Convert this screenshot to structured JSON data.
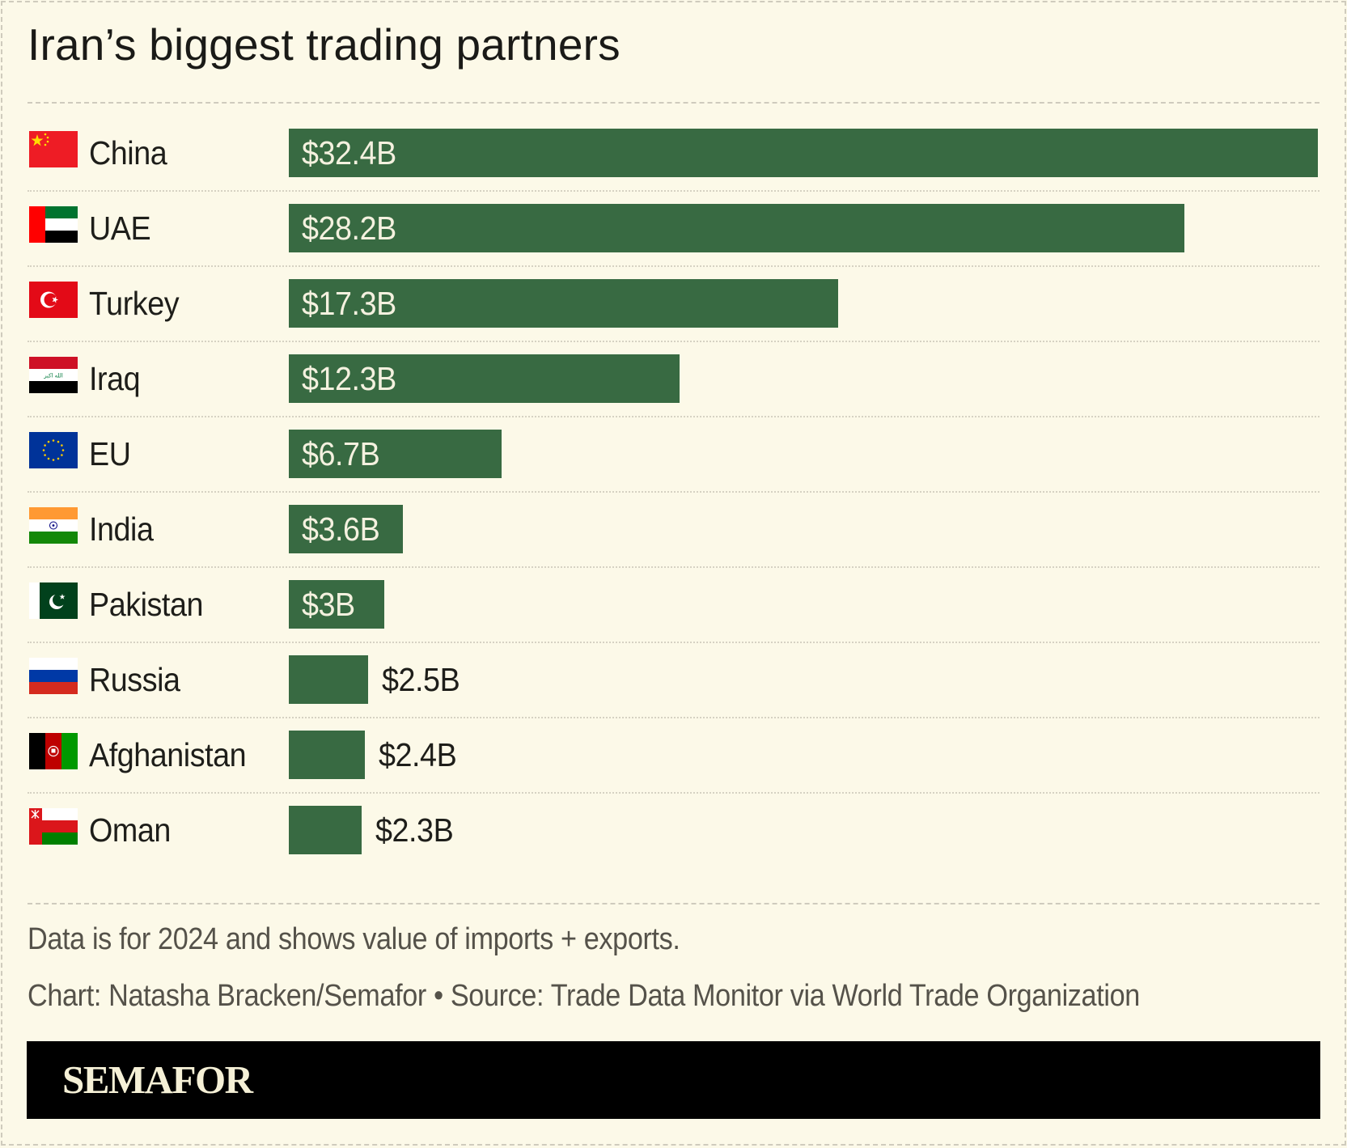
{
  "title": "Iran’s biggest trading partners",
  "colors": {
    "background": "#fcf9e8",
    "bar": "#386a42",
    "bar_label_inside": "#f4f1df",
    "text": "#1e1e1a",
    "footer_text": "#55524a",
    "brand_bar": "#000000",
    "brand_text": "#f5f0d6"
  },
  "rows": [
    {
      "country": "China",
      "value": 32.4,
      "label": "$32.4B",
      "flag": "china-flag-icon",
      "label_position": "inside"
    },
    {
      "country": "UAE",
      "value": 28.2,
      "label": "$28.2B",
      "flag": "uae-flag-icon",
      "label_position": "inside"
    },
    {
      "country": "Turkey",
      "value": 17.3,
      "label": "$17.3B",
      "flag": "turkey-flag-icon",
      "label_position": "inside"
    },
    {
      "country": "Iraq",
      "value": 12.3,
      "label": "$12.3B",
      "flag": "iraq-flag-icon",
      "label_position": "inside"
    },
    {
      "country": "EU",
      "value": 6.7,
      "label": "$6.7B",
      "flag": "eu-flag-icon",
      "label_position": "inside"
    },
    {
      "country": "India",
      "value": 3.6,
      "label": "$3.6B",
      "flag": "india-flag-icon",
      "label_position": "inside"
    },
    {
      "country": "Pakistan",
      "value": 3.0,
      "label": "$3B",
      "flag": "pakistan-flag-icon",
      "label_position": "inside"
    },
    {
      "country": "Russia",
      "value": 2.5,
      "label": "$2.5B",
      "flag": "russia-flag-icon",
      "label_position": "outside"
    },
    {
      "country": "Afghanistan",
      "value": 2.4,
      "label": "$2.4B",
      "flag": "afghanistan-flag-icon",
      "label_position": "outside"
    },
    {
      "country": "Oman",
      "value": 2.3,
      "label": "$2.3B",
      "flag": "oman-flag-icon",
      "label_position": "outside"
    }
  ],
  "footer": {
    "note": "Data is for 2024 and shows value of imports + exports.",
    "credit": "Chart: Natasha Bracken/Semafor • Source: Trade Data Monitor via World Trade Organization",
    "brand": "SEMAFOR"
  },
  "chart_data": {
    "type": "bar",
    "orientation": "horizontal",
    "title": "Iran’s biggest trading partners",
    "categories": [
      "China",
      "UAE",
      "Turkey",
      "Iraq",
      "EU",
      "India",
      "Pakistan",
      "Russia",
      "Afghanistan",
      "Oman"
    ],
    "values": [
      32.4,
      28.2,
      17.3,
      12.3,
      6.7,
      3.6,
      3.0,
      2.5,
      2.4,
      2.3
    ],
    "data_labels": [
      "$32.4B",
      "$28.2B",
      "$17.3B",
      "$12.3B",
      "$6.7B",
      "$3.6B",
      "$3B",
      "$2.5B",
      "$2.4B",
      "$2.3B"
    ],
    "unit": "USD billions",
    "xlabel": "",
    "ylabel": "",
    "xlim": [
      0,
      32.4
    ],
    "grid": false,
    "legend": "none",
    "note": "Data is for 2024 and shows value of imports + exports.",
    "source": "Chart: Natasha Bracken/Semafor • Source: Trade Data Monitor via World Trade Organization"
  }
}
